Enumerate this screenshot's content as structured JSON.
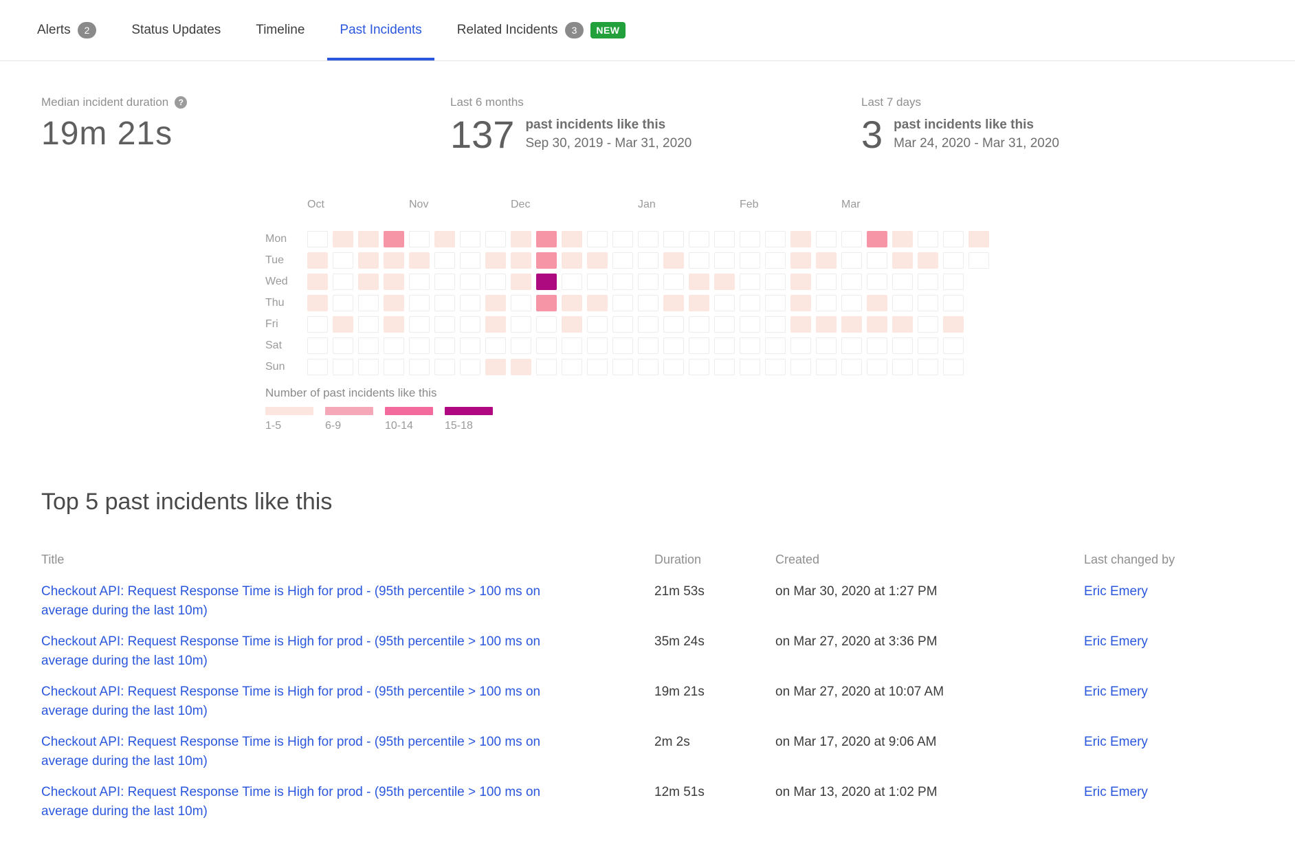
{
  "tabs": [
    {
      "label": "Alerts",
      "badge": "2"
    },
    {
      "label": "Status Updates"
    },
    {
      "label": "Timeline"
    },
    {
      "label": "Past Incidents",
      "active": true
    },
    {
      "label": "Related Incidents",
      "badge": "3",
      "new_badge": "NEW"
    }
  ],
  "stats": {
    "median": {
      "label": "Median incident duration",
      "help_icon": "?",
      "value": "19m 21s"
    },
    "six_months": {
      "label": "Last 6 months",
      "count": "137",
      "desc": "past incidents like this",
      "range": "Sep 30, 2019 - Mar 31, 2020"
    },
    "seven_days": {
      "label": "Last 7 days",
      "count": "3",
      "desc": "past incidents like this",
      "range": "Mar 24, 2020 - Mar 31, 2020"
    }
  },
  "heatmap": {
    "months": [
      {
        "label": "Oct",
        "col": 0
      },
      {
        "label": "Nov",
        "col": 4
      },
      {
        "label": "Dec",
        "col": 8
      },
      {
        "label": "Jan",
        "col": 13
      },
      {
        "label": "Feb",
        "col": 17
      },
      {
        "label": "Mar",
        "col": 21
      }
    ],
    "days": [
      "Mon",
      "Tue",
      "Wed",
      "Thu",
      "Fri",
      "Sat",
      "Sun"
    ],
    "level_colors": [
      "",
      "#fce7e0",
      "#f595a6",
      "#f26b9c",
      "#ac0a7e"
    ],
    "rows": [
      [
        0,
        1,
        1,
        2,
        0,
        1,
        0,
        0,
        1,
        2,
        1,
        0,
        0,
        0,
        0,
        0,
        0,
        0,
        0,
        1,
        0,
        0,
        2,
        1,
        0,
        0,
        1
      ],
      [
        1,
        0,
        1,
        1,
        1,
        0,
        0,
        1,
        1,
        2,
        1,
        1,
        0,
        0,
        1,
        0,
        0,
        0,
        0,
        1,
        1,
        0,
        0,
        1,
        1,
        0,
        0
      ],
      [
        1,
        0,
        1,
        1,
        0,
        0,
        0,
        0,
        1,
        4,
        0,
        0,
        0,
        0,
        0,
        1,
        1,
        0,
        0,
        1,
        0,
        0,
        0,
        0,
        0,
        0
      ],
      [
        1,
        0,
        0,
        1,
        0,
        0,
        0,
        1,
        0,
        2,
        1,
        1,
        0,
        0,
        1,
        1,
        0,
        0,
        0,
        1,
        0,
        0,
        1,
        0,
        0,
        0
      ],
      [
        0,
        1,
        0,
        1,
        0,
        0,
        0,
        1,
        0,
        0,
        1,
        0,
        0,
        0,
        0,
        0,
        0,
        0,
        0,
        1,
        1,
        1,
        1,
        1,
        0,
        1
      ],
      [
        0,
        0,
        0,
        0,
        0,
        0,
        0,
        0,
        0,
        0,
        0,
        0,
        0,
        0,
        0,
        0,
        0,
        0,
        0,
        0,
        0,
        0,
        0,
        0,
        0,
        0
      ],
      [
        0,
        0,
        0,
        0,
        0,
        0,
        0,
        1,
        1,
        0,
        0,
        0,
        0,
        0,
        0,
        0,
        0,
        0,
        0,
        0,
        0,
        0,
        0,
        0,
        0,
        0
      ]
    ],
    "legend": {
      "title": "Number of past incidents like this",
      "buckets": [
        {
          "label": "1-5",
          "color": "#fbe5de"
        },
        {
          "label": "6-9",
          "color": "#f5a9b8"
        },
        {
          "label": "10-14",
          "color": "#f26b9c"
        },
        {
          "label": "15-18",
          "color": "#b00881"
        }
      ]
    }
  },
  "section_title": "Top 5 past incidents like this",
  "table": {
    "headers": [
      "Title",
      "Duration",
      "Created",
      "Last changed by"
    ],
    "rows": [
      {
        "title": "Checkout API: Request Response Time is High for prod - (95th percentile > 100 ms on average during the last 10m)",
        "duration": "21m 53s",
        "created": "on Mar 30, 2020 at 1:27 PM",
        "last_changed_by": "Eric Emery"
      },
      {
        "title": "Checkout API: Request Response Time is High for prod - (95th percentile > 100 ms on average during the last 10m)",
        "duration": "35m 24s",
        "created": "on Mar 27, 2020 at 3:36 PM",
        "last_changed_by": "Eric Emery"
      },
      {
        "title": "Checkout API: Request Response Time is High for prod - (95th percentile > 100 ms on average during the last 10m)",
        "duration": "19m 21s",
        "created": "on Mar 27, 2020 at 10:07 AM",
        "last_changed_by": "Eric Emery"
      },
      {
        "title": "Checkout API: Request Response Time is High for prod - (95th percentile > 100 ms on average during the last 10m)",
        "duration": "2m 2s",
        "created": "on Mar 17, 2020 at 9:06 AM",
        "last_changed_by": "Eric Emery"
      },
      {
        "title": "Checkout API: Request Response Time is High for prod - (95th percentile > 100 ms on average during the last 10m)",
        "duration": "12m 51s",
        "created": "on Mar 13, 2020 at 1:02 PM",
        "last_changed_by": "Eric Emery"
      }
    ]
  }
}
